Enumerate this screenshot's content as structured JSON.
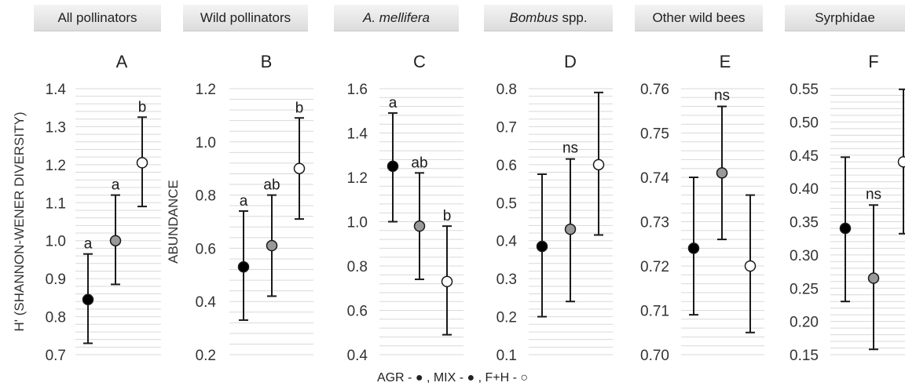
{
  "legend": {
    "text": "AGR - ●  , MIX - ●  , F+H - ○"
  },
  "colors": {
    "AGR": "#000000",
    "MIX": "#999999",
    "FH": "#ffffff",
    "grid": "#d9d9d9",
    "line": "#1a1a1a"
  },
  "chart_data": [
    {
      "type": "scatter",
      "header": "All pollinators",
      "header_style": "normal",
      "letter": "A",
      "ylabel": "H' (SHANNON-WENER DIVERSITY)",
      "ylim": [
        0.7,
        1.4
      ],
      "yticks": [
        "0.7",
        "0.8",
        "0.9",
        "1.0",
        "1.1",
        "1.2",
        "1.3",
        "1.4"
      ],
      "series": [
        {
          "name": "AGR",
          "mean": 0.845,
          "lower": 0.73,
          "upper": 0.965,
          "sig": "a"
        },
        {
          "name": "MIX",
          "mean": 1.0,
          "lower": 0.885,
          "upper": 1.12,
          "sig": "a"
        },
        {
          "name": "F+H",
          "mean": 1.205,
          "lower": 1.09,
          "upper": 1.325,
          "sig": "b"
        }
      ]
    },
    {
      "type": "scatter",
      "header": "Wild pollinators",
      "header_style": "normal",
      "letter": "B",
      "ylabel": "ABUNDANCE",
      "ylim": [
        0.2,
        1.2
      ],
      "yticks": [
        "0.2",
        "0.4",
        "0.6",
        "0.8",
        "1.0",
        "1.2"
      ],
      "series": [
        {
          "name": "AGR",
          "mean": 0.53,
          "lower": 0.33,
          "upper": 0.74,
          "sig": "a"
        },
        {
          "name": "MIX",
          "mean": 0.61,
          "lower": 0.42,
          "upper": 0.8,
          "sig": "ab"
        },
        {
          "name": "F+H",
          "mean": 0.9,
          "lower": 0.71,
          "upper": 1.09,
          "sig": "b"
        }
      ]
    },
    {
      "type": "scatter",
      "header": "A. mellifera",
      "header_style": "italic",
      "letter": "C",
      "ylabel": "",
      "ylim": [
        0.4,
        1.6
      ],
      "yticks": [
        "0.4",
        "0.6",
        "0.8",
        "1.0",
        "1.2",
        "1.4",
        "1.6"
      ],
      "series": [
        {
          "name": "AGR",
          "mean": 1.25,
          "lower": 1.0,
          "upper": 1.49,
          "sig": "a"
        },
        {
          "name": "MIX",
          "mean": 0.98,
          "lower": 0.74,
          "upper": 1.22,
          "sig": "ab"
        },
        {
          "name": "F+H",
          "mean": 0.73,
          "lower": 0.49,
          "upper": 0.98,
          "sig": "b"
        }
      ]
    },
    {
      "type": "scatter",
      "header_italic": "Bombus",
      "header_rest": " spp.",
      "header_style": "mixed",
      "letter": "D",
      "ylabel": "",
      "ylim": [
        0.1,
        0.8
      ],
      "yticks": [
        "0.1",
        "0.2",
        "0.3",
        "0.4",
        "0.5",
        "0.6",
        "0.7",
        "0.8"
      ],
      "annotation": "ns",
      "series": [
        {
          "name": "AGR",
          "mean": 0.385,
          "lower": 0.2,
          "upper": 0.575
        },
        {
          "name": "MIX",
          "mean": 0.43,
          "lower": 0.24,
          "upper": 0.615
        },
        {
          "name": "F+H",
          "mean": 0.6,
          "lower": 0.415,
          "upper": 0.79
        }
      ]
    },
    {
      "type": "scatter",
      "header": "Other wild bees",
      "header_style": "normal",
      "letter": "E",
      "ylabel": "",
      "ylim": [
        0.7,
        0.76
      ],
      "yticks": [
        "0.70",
        "0.71",
        "0.72",
        "0.73",
        "0.74",
        "0.75",
        "0.76"
      ],
      "annotation": "ns",
      "series": [
        {
          "name": "AGR",
          "mean": 0.724,
          "lower": 0.709,
          "upper": 0.74
        },
        {
          "name": "MIX",
          "mean": 0.741,
          "lower": 0.726,
          "upper": 0.756
        },
        {
          "name": "F+H",
          "mean": 0.72,
          "lower": 0.705,
          "upper": 0.736
        }
      ]
    },
    {
      "type": "scatter",
      "header": "Syrphidae",
      "header_style": "normal",
      "letter": "F",
      "ylabel": "",
      "ylim": [
        0.15,
        0.55
      ],
      "yticks": [
        "0.15",
        "0.20",
        "0.25",
        "0.30",
        "0.35",
        "0.40",
        "0.45",
        "0.50",
        "0.55"
      ],
      "annotation": "ns",
      "series": [
        {
          "name": "AGR",
          "mean": 0.34,
          "lower": 0.23,
          "upper": 0.447
        },
        {
          "name": "MIX",
          "mean": 0.265,
          "lower": 0.158,
          "upper": 0.375
        },
        {
          "name": "F+H",
          "mean": 0.44,
          "lower": 0.332,
          "upper": 0.549
        }
      ]
    }
  ]
}
